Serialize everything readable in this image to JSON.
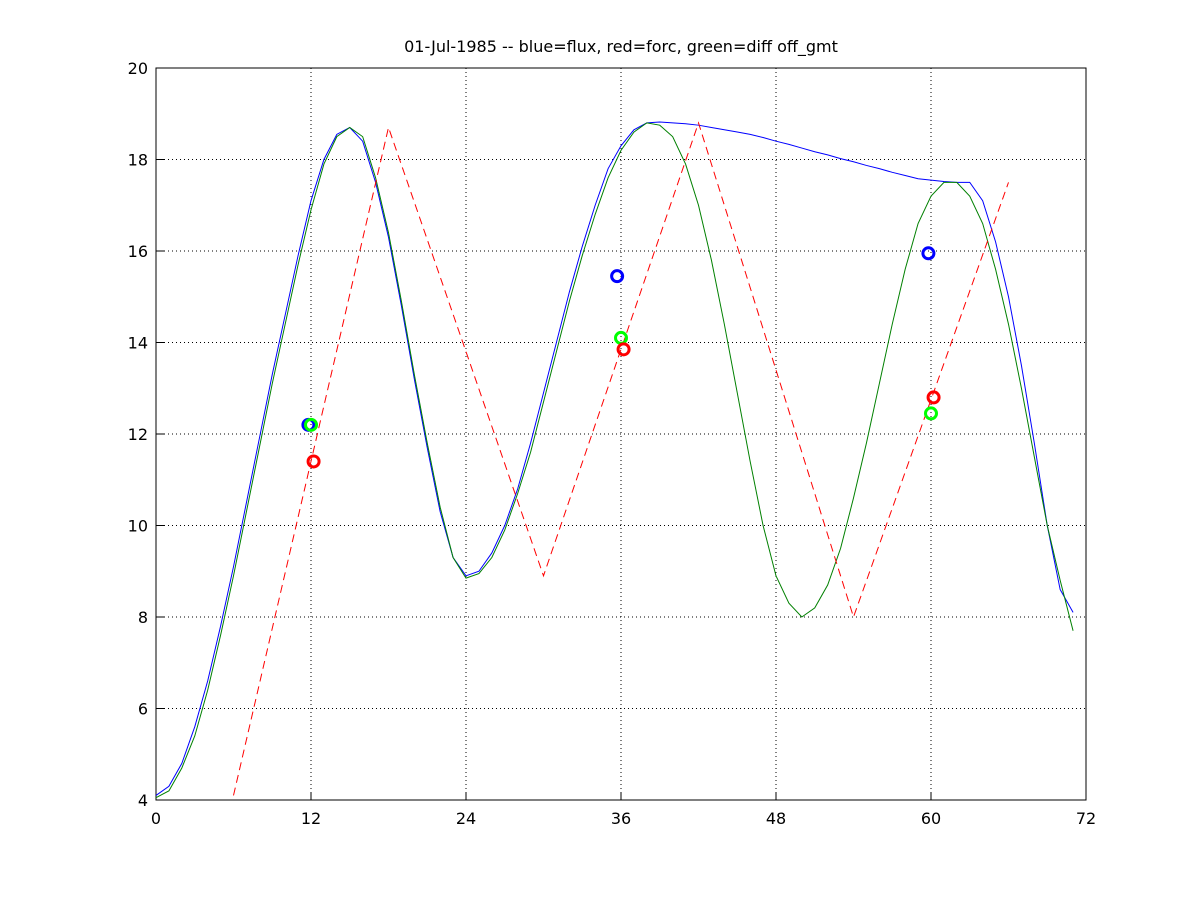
{
  "chart_data": {
    "type": "line",
    "title": "01-Jul-1985 -- blue=flux, red=forc, green=diff off_gmt",
    "xlim": [
      0,
      72
    ],
    "xticks": [
      0,
      12,
      24,
      36,
      48,
      60,
      72
    ],
    "ylim": [
      4,
      20
    ],
    "yticks": [
      4,
      6,
      8,
      10,
      12,
      14,
      16,
      18,
      20
    ],
    "grid": true,
    "series": [
      {
        "color": "#0000ff",
        "linestyle": "solid",
        "x": [
          0,
          1,
          2,
          3,
          4,
          5,
          6,
          7,
          8,
          9,
          10,
          11,
          12,
          13,
          14,
          15,
          16,
          17,
          18,
          19,
          20,
          21,
          22,
          23,
          24,
          25,
          26,
          27,
          28,
          29,
          30,
          31,
          32,
          33,
          34,
          35,
          36,
          37,
          38,
          39,
          40,
          41,
          42,
          43,
          44,
          45,
          46,
          47,
          48,
          49,
          50,
          51,
          52,
          53,
          54,
          55,
          56,
          57,
          58,
          59,
          60,
          61,
          62,
          63,
          64,
          65,
          66,
          67,
          68,
          69,
          70,
          71
        ],
        "values": [
          4.1,
          4.3,
          4.8,
          5.6,
          6.6,
          7.8,
          9.1,
          10.5,
          11.9,
          13.3,
          14.6,
          15.9,
          17.1,
          18.0,
          18.55,
          18.7,
          18.4,
          17.5,
          16.3,
          14.8,
          13.2,
          11.7,
          10.3,
          9.3,
          8.9,
          9.0,
          9.4,
          10.0,
          10.8,
          11.8,
          12.9,
          14.0,
          15.1,
          16.1,
          17.0,
          17.8,
          18.3,
          18.65,
          18.8,
          18.82,
          18.8,
          18.78,
          18.75,
          18.7,
          18.65,
          18.6,
          18.55,
          18.48,
          18.4,
          18.33,
          18.25,
          18.17,
          18.1,
          18.02,
          17.95,
          17.87,
          17.8,
          17.72,
          17.65,
          17.58,
          17.55,
          17.52,
          17.5,
          17.5,
          17.1,
          16.2,
          15.0,
          13.5,
          11.8,
          10.0,
          8.6,
          8.1
        ]
      },
      {
        "color": "#008000",
        "linestyle": "solid",
        "x": [
          0,
          1,
          2,
          3,
          4,
          5,
          6,
          7,
          8,
          9,
          10,
          11,
          12,
          13,
          14,
          15,
          16,
          17,
          18,
          19,
          20,
          21,
          22,
          23,
          24,
          25,
          26,
          27,
          28,
          29,
          30,
          31,
          32,
          33,
          34,
          35,
          36,
          37,
          38,
          39,
          40,
          41,
          42,
          43,
          44,
          45,
          46,
          47,
          48,
          49,
          50,
          51,
          52,
          53,
          54,
          55,
          56,
          57,
          58,
          59,
          60,
          61,
          62,
          63,
          64,
          65,
          66,
          67,
          68,
          69,
          70,
          71
        ],
        "values": [
          4.05,
          4.2,
          4.7,
          5.4,
          6.4,
          7.6,
          8.9,
          10.3,
          11.7,
          13.1,
          14.4,
          15.7,
          16.9,
          17.9,
          18.5,
          18.7,
          18.5,
          17.6,
          16.4,
          14.9,
          13.3,
          11.8,
          10.4,
          9.3,
          8.85,
          8.95,
          9.3,
          9.9,
          10.7,
          11.6,
          12.7,
          13.8,
          14.9,
          15.9,
          16.8,
          17.6,
          18.2,
          18.6,
          18.8,
          18.75,
          18.5,
          17.9,
          17.0,
          15.8,
          14.4,
          12.9,
          11.4,
          10.0,
          8.9,
          8.3,
          8.0,
          8.2,
          8.7,
          9.5,
          10.6,
          11.8,
          13.1,
          14.4,
          15.6,
          16.6,
          17.2,
          17.5,
          17.5,
          17.2,
          16.6,
          15.6,
          14.4,
          13.0,
          11.5,
          10.0,
          8.8,
          7.7
        ]
      },
      {
        "color": "#ff0000",
        "linestyle": "dashed",
        "x": [
          6,
          18,
          30,
          42,
          54,
          66
        ],
        "values": [
          4.1,
          18.7,
          8.9,
          18.8,
          8.0,
          17.5
        ]
      },
      {
        "color": "#0000ff",
        "marker": "o",
        "x": [
          11.8,
          35.7,
          59.8
        ],
        "values": [
          12.2,
          15.45,
          15.95
        ]
      },
      {
        "color": "#00ff00",
        "marker": "o",
        "x": [
          12.0,
          36.0,
          60.0
        ],
        "values": [
          12.2,
          14.1,
          12.45
        ]
      },
      {
        "color": "#ff0000",
        "marker": "o",
        "x": [
          12.2,
          36.2,
          60.2
        ],
        "values": [
          11.4,
          13.85,
          12.8
        ]
      }
    ]
  }
}
